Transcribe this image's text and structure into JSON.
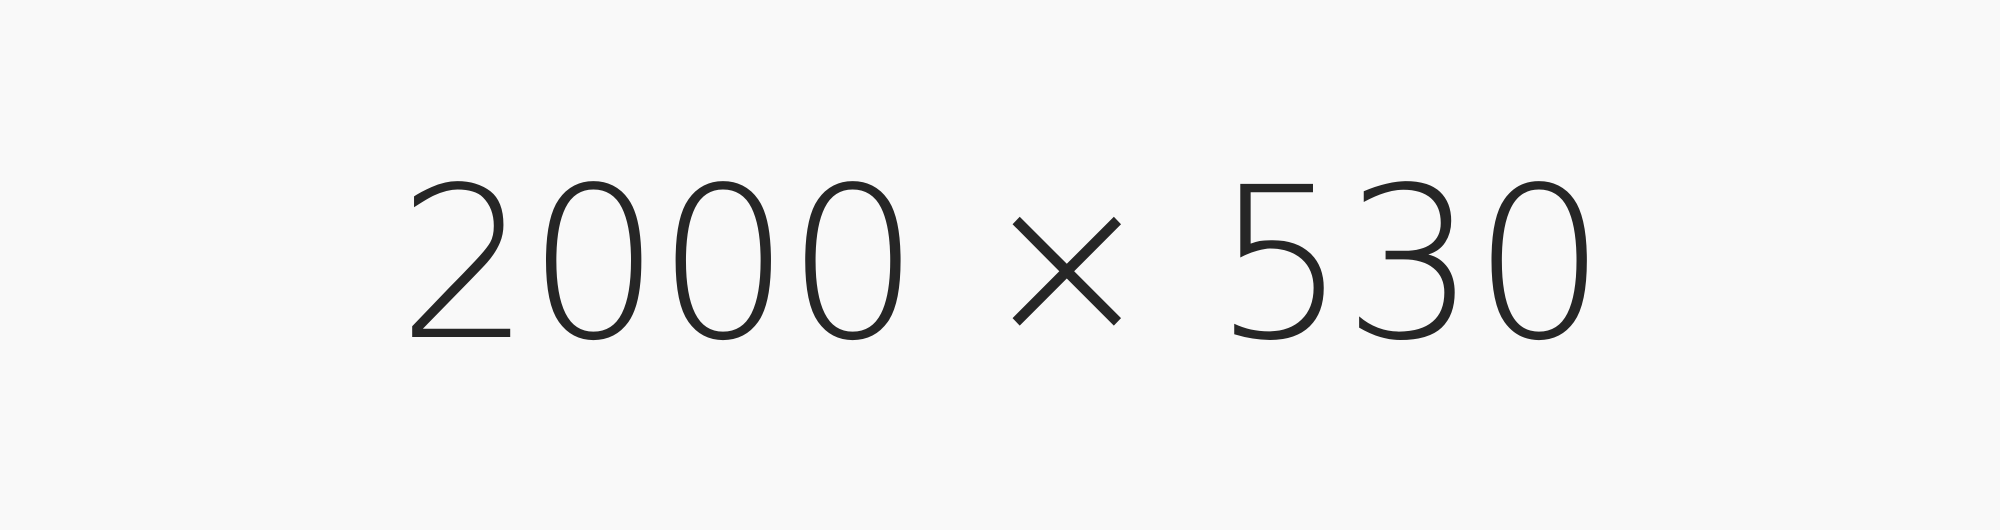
{
  "canvas": {
    "text": "2000 × 530",
    "background": "#f9f9f9",
    "text_color": "#262626"
  }
}
